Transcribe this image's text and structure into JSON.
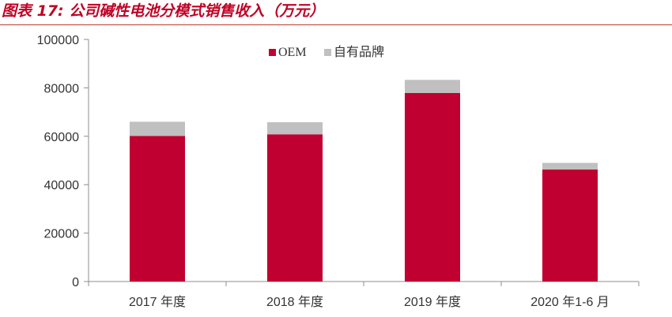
{
  "figure_title": "图表 17: 公司碱性电池分模式销售收入（万元）",
  "colors": {
    "accent": "#c00024",
    "series_oem": "#c00030",
    "series_own": "#c0c0c0",
    "axis": "#8c8c8c"
  },
  "chart_data": {
    "type": "bar",
    "stacked": true,
    "title": "",
    "xlabel": "",
    "ylabel": "",
    "categories": [
      "2017 年度",
      "2018 年度",
      "2019 年度",
      "2020 年1-6 月"
    ],
    "series": [
      {
        "name": "OEM",
        "values": [
          60100,
          60800,
          77900,
          46300
        ],
        "color": "#c00030"
      },
      {
        "name": "自有品牌",
        "values": [
          5900,
          5000,
          5400,
          2700
        ],
        "color": "#c0c0c0"
      }
    ],
    "ylim": [
      0,
      100000
    ],
    "yticks": [
      0,
      20000,
      40000,
      60000,
      80000,
      100000
    ],
    "grid": false,
    "legend_position": "top-center"
  }
}
